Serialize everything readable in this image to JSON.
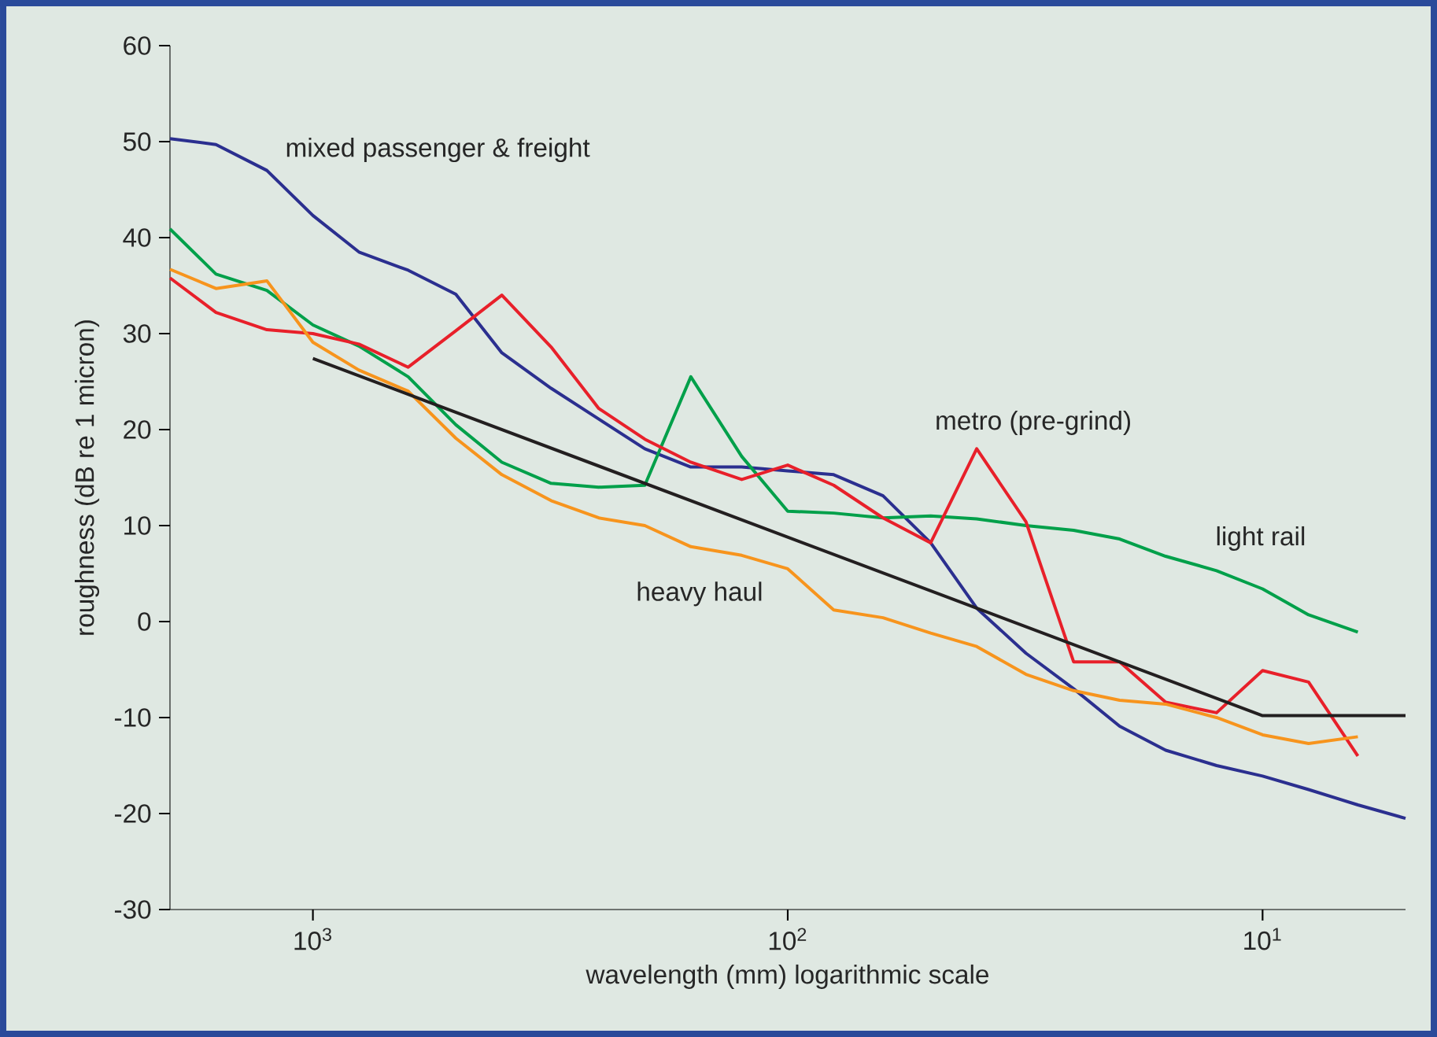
{
  "chart_data": {
    "type": "line",
    "xlabel": "wavelength (mm) logarithmic scale",
    "ylabel": "roughness (dB re 1 micron)",
    "x": [
      2000,
      1600,
      1250,
      1000,
      800,
      630,
      500,
      400,
      315,
      250,
      200,
      160,
      125,
      100,
      80,
      63,
      50,
      40,
      31.5,
      25,
      20,
      16,
      12.5,
      10,
      8,
      6.3,
      5
    ],
    "series": [
      {
        "name": "mixed passenger & freight",
        "color": "#2b2f8f",
        "values": [
          50.3,
          49.7,
          47.0,
          42.3,
          38.5,
          36.6,
          34.1,
          28.0,
          24.3,
          21.1,
          18.0,
          16.1,
          16.1,
          15.7,
          15.3,
          13.1,
          8.2,
          1.4,
          -3.3,
          -7.0,
          -10.9,
          -13.4,
          -15.0,
          -16.1,
          -17.5,
          -19.1,
          -20.5
        ]
      },
      {
        "name": "light rail",
        "color": "#00a04a",
        "values": [
          40.9,
          36.2,
          34.5,
          30.9,
          28.7,
          25.5,
          20.5,
          16.6,
          14.4,
          14.0,
          14.2,
          25.5,
          17.2,
          11.5,
          11.3,
          10.8,
          11.0,
          10.7,
          10.0,
          9.5,
          8.6,
          6.8,
          5.3,
          3.4,
          0.7,
          -1.1,
          null
        ]
      },
      {
        "name": "metro (pre-grind)",
        "color": "#e8202a",
        "values": [
          35.8,
          32.2,
          30.4,
          30.0,
          28.9,
          26.5,
          30.3,
          34.0,
          28.6,
          22.2,
          19.0,
          16.6,
          14.8,
          16.3,
          14.2,
          10.8,
          8.2,
          18.0,
          10.4,
          -4.2,
          -4.2,
          -8.4,
          -9.5,
          -5.1,
          -6.3,
          -14.0,
          null
        ]
      },
      {
        "name": "heavy haul",
        "color": "#f7941d",
        "values": [
          36.7,
          34.7,
          35.5,
          29.1,
          26.2,
          24.0,
          19.1,
          15.3,
          12.6,
          10.8,
          10.0,
          7.8,
          6.9,
          5.5,
          1.2,
          0.4,
          -1.2,
          -2.6,
          -5.5,
          -7.2,
          -8.2,
          -8.6,
          -10.0,
          -11.8,
          -12.7,
          -12.0,
          null
        ]
      },
      {
        "color": "#231f20",
        "x": [
          1000,
          10,
          5
        ],
        "values": [
          27.4,
          -9.8,
          -9.8
        ]
      }
    ],
    "log": "x",
    "xlim": [
      2000,
      5
    ],
    "xticks": [
      {
        "value": 1000,
        "label": "10$^{3}$"
      },
      {
        "value": 100,
        "label": "10$^{2}$"
      },
      {
        "value": 10,
        "label": "10$^{1}$"
      }
    ],
    "ylim": [
      -30,
      60
    ],
    "yticks": [
      -30,
      -20,
      -10,
      0,
      10,
      20,
      30,
      40,
      50,
      60
    ]
  }
}
